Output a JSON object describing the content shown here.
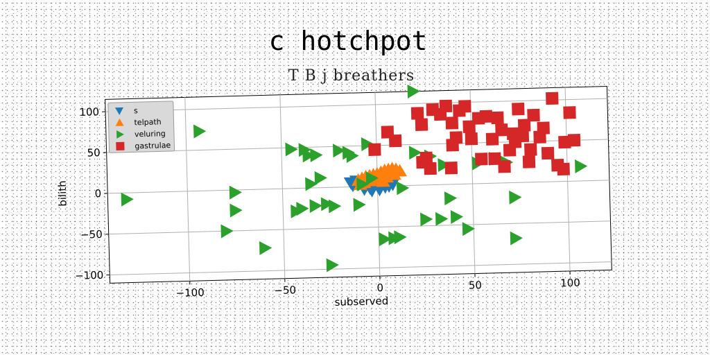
{
  "chart_data": {
    "type": "scatter",
    "title": "c hotchpot",
    "subtitle": "T B j breathers",
    "xlabel": "subserved",
    "ylabel": "bilith",
    "xlim": [
      -142,
      122
    ],
    "ylim": [
      -110,
      115
    ],
    "xticks": [
      -100,
      -50,
      0,
      50,
      100
    ],
    "yticks": [
      -100,
      -50,
      0,
      50,
      100
    ],
    "xtick_labels": [
      "−100",
      "−50",
      "0",
      "50",
      "100"
    ],
    "ytick_labels": [
      "−100",
      "−50",
      "0",
      "50",
      "100"
    ],
    "grid": true,
    "legend_position": "top-left",
    "series": [
      {
        "name": "s",
        "marker": "triangle-down",
        "color": "#1f77b4",
        "points": [
          [
            -14,
            5
          ],
          [
            -12,
            4
          ],
          [
            -10,
            3
          ],
          [
            -8,
            2
          ],
          [
            -6,
            1
          ],
          [
            -4,
            -2
          ],
          [
            -2,
            0
          ],
          [
            -1,
            3
          ],
          [
            0,
            2
          ],
          [
            2,
            0
          ],
          [
            4,
            -1
          ],
          [
            6,
            0
          ],
          [
            8,
            2
          ],
          [
            -11,
            7
          ],
          [
            -7,
            -3
          ],
          [
            -3,
            -5
          ],
          [
            1,
            -4
          ],
          [
            3,
            3
          ],
          [
            -13,
            2
          ],
          [
            -5,
            4
          ]
        ]
      },
      {
        "name": "telpath",
        "marker": "triangle-up",
        "color": "#ff7f0e",
        "points": [
          [
            -10,
            8
          ],
          [
            -8,
            10
          ],
          [
            -6,
            12
          ],
          [
            -4,
            13
          ],
          [
            -2,
            14
          ],
          [
            0,
            15
          ],
          [
            2,
            17
          ],
          [
            4,
            19
          ],
          [
            6,
            20
          ],
          [
            8,
            21
          ],
          [
            10,
            20
          ],
          [
            12,
            18
          ],
          [
            -7,
            5
          ],
          [
            -3,
            7
          ],
          [
            1,
            9
          ],
          [
            5,
            11
          ],
          [
            9,
            14
          ],
          [
            -9,
            3
          ],
          [
            3,
            6
          ]
        ]
      },
      {
        "name": "veluring",
        "marker": "triangle-right",
        "color": "#2ca02c",
        "points": [
          [
            -132,
            -8
          ],
          [
            -93,
            73
          ],
          [
            -75,
            -3
          ],
          [
            -75,
            -25
          ],
          [
            -80,
            -50
          ],
          [
            -60,
            -72
          ],
          [
            -45,
            48
          ],
          [
            -43,
            -28
          ],
          [
            -40,
            -25
          ],
          [
            -38,
            47
          ],
          [
            -36,
            40
          ],
          [
            -35,
            5
          ],
          [
            -33,
            -22
          ],
          [
            -32,
            40
          ],
          [
            -30,
            12
          ],
          [
            -27,
            -20
          ],
          [
            -25,
            -95
          ],
          [
            -23,
            -23
          ],
          [
            -20,
            45
          ],
          [
            -15,
            42
          ],
          [
            -13,
            38
          ],
          [
            -10,
            -22
          ],
          [
            -8,
            3
          ],
          [
            -5,
            52
          ],
          [
            -3,
            10
          ],
          [
            3,
            -65
          ],
          [
            8,
            -64
          ],
          [
            11,
            -63
          ],
          [
            13,
            -3
          ],
          [
            20,
            115
          ],
          [
            20,
            40
          ],
          [
            25,
            -42
          ],
          [
            28,
            35
          ],
          [
            33,
            -42
          ],
          [
            35,
            24
          ],
          [
            38,
            -17
          ],
          [
            41,
            -40
          ],
          [
            47,
            -55
          ],
          [
            53,
            25
          ],
          [
            62,
            30
          ],
          [
            68,
            25
          ],
          [
            72,
            -18
          ],
          [
            72,
            -68
          ],
          [
            107,
            18
          ]
        ]
      },
      {
        "name": "gastrulae",
        "marker": "square",
        "color": "#d62728",
        "points": [
          [
            -1,
            45
          ],
          [
            6,
            66
          ],
          [
            10,
            55
          ],
          [
            22,
            88
          ],
          [
            24,
            74
          ],
          [
            24,
            28
          ],
          [
            26,
            33
          ],
          [
            28,
            20
          ],
          [
            30,
            92
          ],
          [
            34,
            86
          ],
          [
            37,
            96
          ],
          [
            39,
            20
          ],
          [
            40,
            75
          ],
          [
            42,
            57
          ],
          [
            44,
            90
          ],
          [
            47,
            95
          ],
          [
            49,
            70
          ],
          [
            50,
            55
          ],
          [
            54,
            80
          ],
          [
            58,
            82
          ],
          [
            61,
            54
          ],
          [
            62,
            30
          ],
          [
            64,
            80
          ],
          [
            66,
            65
          ],
          [
            67,
            20
          ],
          [
            70,
            40
          ],
          [
            72,
            60
          ],
          [
            73,
            50
          ],
          [
            75,
            90
          ],
          [
            78,
            70
          ],
          [
            80,
            25
          ],
          [
            81,
            40
          ],
          [
            83,
            82
          ],
          [
            86,
            55
          ],
          [
            88,
            66
          ],
          [
            90,
            35
          ],
          [
            93,
            102
          ],
          [
            95,
            20
          ],
          [
            98,
            15
          ],
          [
            99,
            48
          ],
          [
            102,
            84
          ],
          [
            104,
            50
          ],
          [
            40,
            48
          ],
          [
            55,
            30
          ],
          [
            77,
            57
          ]
        ]
      }
    ]
  }
}
